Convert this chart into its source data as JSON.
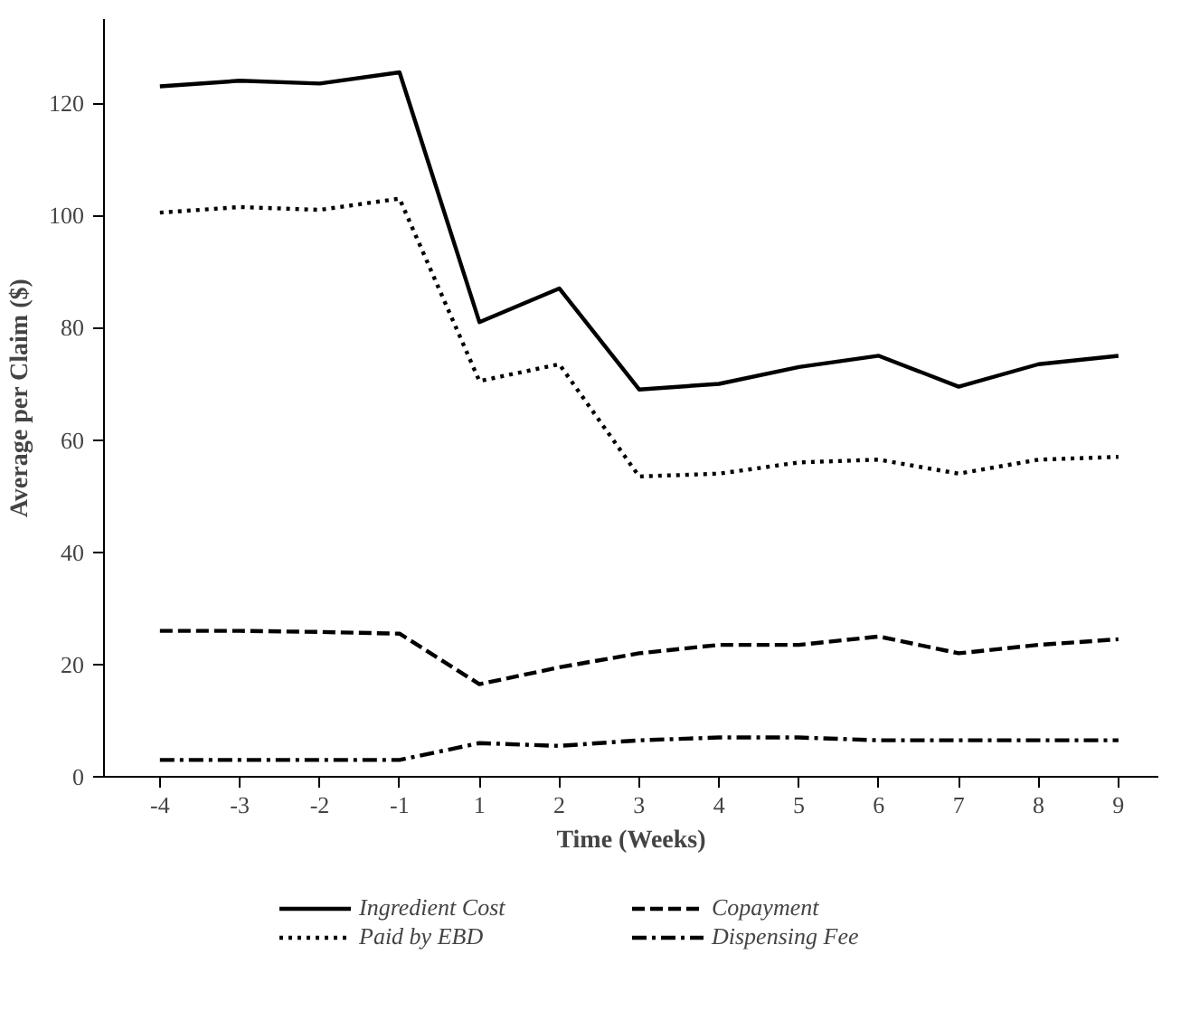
{
  "chart_data": {
    "type": "line",
    "xlabel": "Time (Weeks)",
    "ylabel": "Average per Claim ($)",
    "categories": [
      "-4",
      "-3",
      "-2",
      "-1",
      "1",
      "2",
      "3",
      "4",
      "5",
      "6",
      "7",
      "8",
      "9"
    ],
    "ylim": [
      0,
      135
    ],
    "yticks": [
      0,
      20,
      40,
      60,
      80,
      100,
      120
    ],
    "grid": false,
    "legend": "bottom",
    "series": [
      {
        "name": "Ingredient Cost",
        "color": "#000000",
        "line_style": "solid",
        "values": [
          123,
          124,
          123.5,
          125.5,
          81,
          87,
          69,
          70,
          73,
          75,
          69.5,
          73.5,
          75
        ]
      },
      {
        "name": "Paid by EBD",
        "color": "#000000",
        "line_style": "dotted",
        "values": [
          100.5,
          101.5,
          101,
          103,
          70.5,
          73.5,
          53.5,
          54,
          56,
          56.5,
          54,
          56.5,
          57
        ]
      },
      {
        "name": "Copayment",
        "color": "#000000",
        "line_style": "dashed",
        "values": [
          26,
          26,
          25.8,
          25.5,
          16.5,
          19.5,
          22,
          23.5,
          23.5,
          25,
          22,
          23.5,
          24.5
        ]
      },
      {
        "name": "Dispensing Fee",
        "color": "#000000",
        "line_style": "dashdot",
        "values": [
          3,
          3,
          3,
          3,
          6,
          5.5,
          6.5,
          7,
          7,
          6.5,
          6.5,
          6.5,
          6.5
        ]
      }
    ]
  }
}
